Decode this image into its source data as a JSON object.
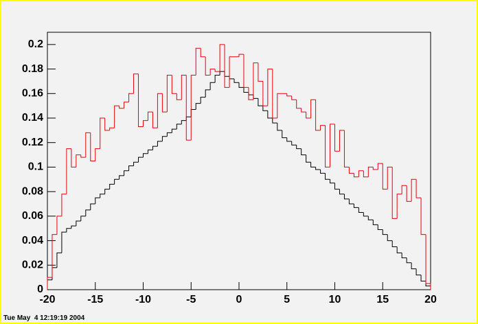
{
  "chart_data": {
    "type": "histogram",
    "footer": "Tue May  4 12:19:19 2004",
    "bins": [
      -20,
      -19.5,
      -19,
      -18.5,
      -18,
      -17.5,
      -17,
      -16.5,
      -16,
      -15.5,
      -15,
      -14.5,
      -14,
      -13.5,
      -13,
      -12.5,
      -12,
      -11.5,
      -11,
      -10.5,
      -10,
      -9.5,
      -9,
      -8.5,
      -8,
      -7.5,
      -7,
      -6.5,
      -6,
      -5.5,
      -5,
      -4.5,
      -4,
      -3.5,
      -3,
      -2.5,
      -2,
      -1.5,
      -1,
      -0.5,
      0,
      0.5,
      1,
      1.5,
      2,
      2.5,
      3,
      3.5,
      4,
      4.5,
      5,
      5.5,
      6,
      6.5,
      7,
      7.5,
      8,
      8.5,
      9,
      9.5,
      10,
      10.5,
      11,
      11.5,
      12,
      12.5,
      13,
      13.5,
      14,
      14.5,
      15,
      15.5,
      16,
      16.5,
      17,
      17.5,
      18,
      18.5,
      19,
      19.5,
      20
    ],
    "series": [
      {
        "color": "#000000",
        "values": [
          0.008,
          0.018,
          0.03,
          0.047,
          0.05,
          0.052,
          0.056,
          0.06,
          0.065,
          0.07,
          0.075,
          0.078,
          0.082,
          0.086,
          0.09,
          0.093,
          0.097,
          0.101,
          0.104,
          0.108,
          0.111,
          0.114,
          0.117,
          0.121,
          0.125,
          0.128,
          0.131,
          0.135,
          0.138,
          0.141,
          0.147,
          0.152,
          0.157,
          0.163,
          0.169,
          0.175,
          0.178,
          0.174,
          0.172,
          0.169,
          0.165,
          0.161,
          0.159,
          0.156,
          0.15,
          0.146,
          0.14,
          0.136,
          0.13,
          0.124,
          0.121,
          0.118,
          0.115,
          0.11,
          0.104,
          0.1,
          0.098,
          0.095,
          0.09,
          0.087,
          0.082,
          0.078,
          0.074,
          0.07,
          0.067,
          0.063,
          0.06,
          0.057,
          0.053,
          0.049,
          0.045,
          0.04,
          0.035,
          0.03,
          0.026,
          0.022,
          0.017,
          0.012,
          0.007,
          0.003
        ]
      },
      {
        "color": "#e8000b",
        "values": [
          0.01,
          0.045,
          0.06,
          0.078,
          0.115,
          0.1,
          0.11,
          0.108,
          0.128,
          0.105,
          0.115,
          0.14,
          0.13,
          0.132,
          0.15,
          0.148,
          0.153,
          0.16,
          0.176,
          0.133,
          0.138,
          0.145,
          0.132,
          0.16,
          0.145,
          0.175,
          0.16,
          0.155,
          0.175,
          0.122,
          0.175,
          0.197,
          0.19,
          0.175,
          0.18,
          0.178,
          0.2,
          0.165,
          0.19,
          0.19,
          0.192,
          0.165,
          0.155,
          0.185,
          0.17,
          0.15,
          0.18,
          0.14,
          0.16,
          0.16,
          0.158,
          0.155,
          0.148,
          0.145,
          0.14,
          0.155,
          0.13,
          0.134,
          0.1,
          0.135,
          0.113,
          0.13,
          0.1,
          0.095,
          0.092,
          0.097,
          0.092,
          0.1,
          0.098,
          0.103,
          0.082,
          0.1,
          0.058,
          0.078,
          0.085,
          0.072,
          0.09,
          0.075,
          0.045,
          0.005
        ]
      }
    ],
    "xlim": [
      -20,
      20
    ],
    "xticks": [
      -20,
      -15,
      -10,
      -5,
      0,
      5,
      10,
      15,
      20
    ],
    "ylim": [
      0,
      0.21
    ],
    "yticks": [
      0,
      0.02,
      0.04,
      0.06,
      0.08,
      0.1,
      0.12,
      0.14,
      0.16,
      0.18,
      0.2
    ]
  }
}
